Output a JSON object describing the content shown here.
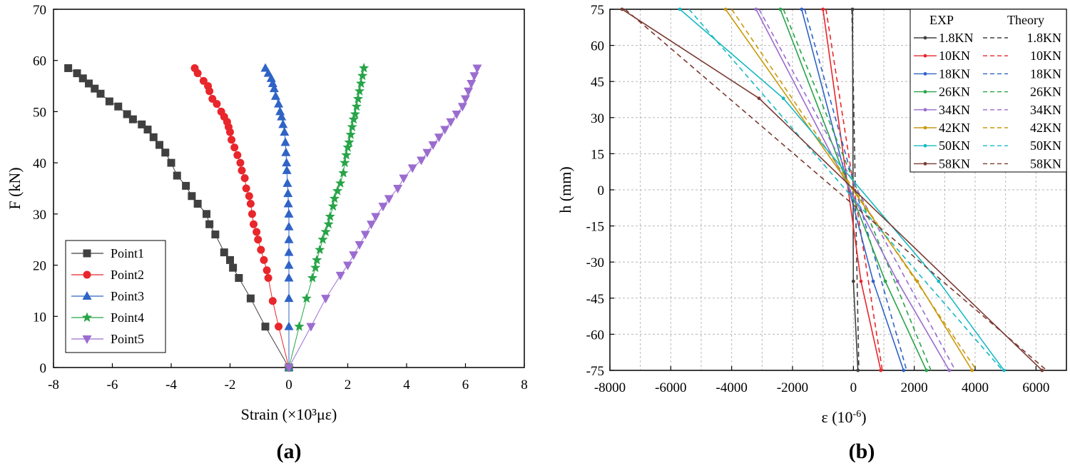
{
  "colors": {
    "black": "#404040",
    "red": "#e8262b",
    "blue": "#2f63c6",
    "green": "#27a448",
    "purple": "#9b6cd0",
    "gold": "#c99a0e",
    "cyan": "#17b9c4",
    "brown": "#7a3b32",
    "grid": "#b8b8b8"
  },
  "panels": {
    "a": "(a)",
    "b": "(b)"
  },
  "chart_data": [
    {
      "type": "scatter",
      "panel": "(a)",
      "xlabel": "Strain (×10³με)",
      "ylabel": "F (kN)",
      "xlim": [
        -8,
        8
      ],
      "ylim": [
        0,
        70
      ],
      "xticks": [
        -8,
        -6,
        -4,
        -2,
        0,
        2,
        4,
        6,
        8
      ],
      "yticks": [
        0,
        10,
        20,
        30,
        40,
        50,
        60,
        70
      ],
      "legend_position": "bottom-left",
      "series": [
        {
          "name": "Point1",
          "color": "black",
          "marker": "square",
          "points": [
            [
              0,
              0
            ],
            [
              -0.8,
              8
            ],
            [
              -1.3,
              13.5
            ],
            [
              -1.7,
              17.5
            ],
            [
              -1.9,
              19.5
            ],
            [
              -2.0,
              21
            ],
            [
              -2.2,
              22.5
            ],
            [
              -2.5,
              26
            ],
            [
              -2.7,
              28
            ],
            [
              -2.8,
              30
            ],
            [
              -3.1,
              32
            ],
            [
              -3.3,
              33.5
            ],
            [
              -3.5,
              35.5
            ],
            [
              -3.8,
              37.5
            ],
            [
              -4.0,
              40
            ],
            [
              -4.2,
              42
            ],
            [
              -4.4,
              43.5
            ],
            [
              -4.6,
              45
            ],
            [
              -4.8,
              46.5
            ],
            [
              -5.0,
              47.5
            ],
            [
              -5.3,
              48.5
            ],
            [
              -5.5,
              49.5
            ],
            [
              -5.8,
              51
            ],
            [
              -6.1,
              52
            ],
            [
              -6.4,
              53.5
            ],
            [
              -6.6,
              54.5
            ],
            [
              -6.8,
              55.5
            ],
            [
              -7.0,
              56.5
            ],
            [
              -7.2,
              57.5
            ],
            [
              -7.5,
              58.5
            ]
          ]
        },
        {
          "name": "Point2",
          "color": "red",
          "marker": "circle",
          "points": [
            [
              0,
              0
            ],
            [
              -0.35,
              8
            ],
            [
              -0.55,
              13
            ],
            [
              -0.7,
              17.5
            ],
            [
              -0.75,
              19
            ],
            [
              -0.85,
              21
            ],
            [
              -0.95,
              23
            ],
            [
              -1.05,
              25
            ],
            [
              -1.1,
              26.5
            ],
            [
              -1.2,
              28
            ],
            [
              -1.25,
              30
            ],
            [
              -1.3,
              32
            ],
            [
              -1.35,
              33.5
            ],
            [
              -1.45,
              35
            ],
            [
              -1.5,
              37
            ],
            [
              -1.6,
              38.5
            ],
            [
              -1.65,
              40
            ],
            [
              -1.75,
              41.5
            ],
            [
              -1.85,
              43
            ],
            [
              -1.95,
              44.5
            ],
            [
              -2.0,
              46
            ],
            [
              -2.05,
              47
            ],
            [
              -2.1,
              48
            ],
            [
              -2.2,
              49
            ],
            [
              -2.3,
              50
            ],
            [
              -2.45,
              51.5
            ],
            [
              -2.6,
              52.5
            ],
            [
              -2.7,
              54
            ],
            [
              -2.75,
              55
            ],
            [
              -2.9,
              56
            ],
            [
              -3.1,
              57.5
            ],
            [
              -3.2,
              58.5
            ]
          ]
        },
        {
          "name": "Point3",
          "color": "blue",
          "marker": "triangle-up",
          "points": [
            [
              0,
              0
            ],
            [
              0,
              8
            ],
            [
              0,
              13.5
            ],
            [
              0,
              17.5
            ],
            [
              0,
              20
            ],
            [
              0,
              22.5
            ],
            [
              0,
              25
            ],
            [
              0,
              27.5
            ],
            [
              0,
              30
            ],
            [
              -0.02,
              32
            ],
            [
              -0.03,
              34
            ],
            [
              -0.05,
              36
            ],
            [
              -0.07,
              38.5
            ],
            [
              -0.08,
              40
            ],
            [
              -0.1,
              42
            ],
            [
              -0.12,
              44
            ],
            [
              -0.15,
              46
            ],
            [
              -0.2,
              47.5
            ],
            [
              -0.25,
              49
            ],
            [
              -0.3,
              50
            ],
            [
              -0.35,
              51.5
            ],
            [
              -0.45,
              53
            ],
            [
              -0.5,
              54.5
            ],
            [
              -0.55,
              55.5
            ],
            [
              -0.6,
              56.5
            ],
            [
              -0.7,
              57.5
            ],
            [
              -0.8,
              58.5
            ]
          ]
        },
        {
          "name": "Point4",
          "color": "green",
          "marker": "star",
          "points": [
            [
              0,
              0
            ],
            [
              0.35,
              8
            ],
            [
              0.6,
              13.5
            ],
            [
              0.8,
              17.5
            ],
            [
              0.9,
              19.5
            ],
            [
              0.95,
              21
            ],
            [
              1.05,
              23
            ],
            [
              1.15,
              25
            ],
            [
              1.25,
              26.5
            ],
            [
              1.35,
              28
            ],
            [
              1.4,
              29.5
            ],
            [
              1.5,
              31.5
            ],
            [
              1.55,
              33
            ],
            [
              1.65,
              34.5
            ],
            [
              1.75,
              36
            ],
            [
              1.85,
              38
            ],
            [
              1.9,
              40
            ],
            [
              1.95,
              41.5
            ],
            [
              2.0,
              43
            ],
            [
              2.05,
              44
            ],
            [
              2.1,
              45.5
            ],
            [
              2.15,
              47
            ],
            [
              2.2,
              48.5
            ],
            [
              2.25,
              49.5
            ],
            [
              2.3,
              51
            ],
            [
              2.35,
              52.5
            ],
            [
              2.4,
              54
            ],
            [
              2.45,
              55.5
            ],
            [
              2.5,
              57
            ],
            [
              2.55,
              58.5
            ]
          ]
        },
        {
          "name": "Point5",
          "color": "purple",
          "marker": "triangle-down",
          "points": [
            [
              0,
              0
            ],
            [
              0.75,
              8
            ],
            [
              1.25,
              13.5
            ],
            [
              1.75,
              18
            ],
            [
              2.0,
              20
            ],
            [
              2.2,
              22
            ],
            [
              2.4,
              24
            ],
            [
              2.6,
              26
            ],
            [
              2.8,
              28
            ],
            [
              2.95,
              29.5
            ],
            [
              3.2,
              31.5
            ],
            [
              3.4,
              33
            ],
            [
              3.7,
              35
            ],
            [
              3.9,
              37
            ],
            [
              4.2,
              39
            ],
            [
              4.5,
              40.5
            ],
            [
              4.7,
              42
            ],
            [
              4.9,
              43.5
            ],
            [
              5.1,
              45
            ],
            [
              5.3,
              46.5
            ],
            [
              5.5,
              48
            ],
            [
              5.7,
              49.5
            ],
            [
              5.9,
              51
            ],
            [
              6.0,
              52.5
            ],
            [
              6.1,
              54
            ],
            [
              6.2,
              55.5
            ],
            [
              6.3,
              57
            ],
            [
              6.4,
              58.5
            ]
          ]
        }
      ]
    },
    {
      "type": "line",
      "panel": "(b)",
      "xlabel": "ε (10",
      "xlabel_sup": "-6",
      "xlabel_end": ")",
      "ylabel": "h (mm)",
      "xlim": [
        -8000,
        7000
      ],
      "ylim": [
        -75,
        75
      ],
      "xticks": [
        -8000,
        -6000,
        -4000,
        -2000,
        0,
        2000,
        4000,
        6000
      ],
      "yticks": [
        75,
        60,
        45,
        30,
        15,
        0,
        -15,
        -30,
        -45,
        -60,
        -75
      ],
      "grid": true,
      "legend_position": "top-right",
      "legend_headers": [
        "EXP",
        "Theory"
      ],
      "series": [
        {
          "name": "1.8KN",
          "color": "black",
          "exp": [
            [
              -30,
              75
            ],
            [
              0,
              -38
            ],
            [
              150,
              -75
            ]
          ],
          "theory": [
            [
              -50,
              75
            ],
            [
              180,
              -75
            ]
          ]
        },
        {
          "name": "10KN",
          "color": "red",
          "exp": [
            [
              -1000,
              75
            ],
            [
              250,
              -38
            ],
            [
              900,
              -75
            ]
          ],
          "theory": [
            [
              -900,
              75
            ],
            [
              950,
              -75
            ]
          ]
        },
        {
          "name": "18KN",
          "color": "blue",
          "exp": [
            [
              -1700,
              75
            ],
            [
              650,
              -38
            ],
            [
              1650,
              -75
            ]
          ],
          "theory": [
            [
              -1600,
              75
            ],
            [
              1750,
              -75
            ]
          ]
        },
        {
          "name": "26KN",
          "color": "green",
          "exp": [
            [
              -2400,
              75
            ],
            [
              1050,
              -38
            ],
            [
              2400,
              -75
            ]
          ],
          "theory": [
            [
              -2300,
              75
            ],
            [
              2550,
              -75
            ]
          ]
        },
        {
          "name": "34KN",
          "color": "purple",
          "exp": [
            [
              -3200,
              75
            ],
            [
              1450,
              -38
            ],
            [
              3150,
              -75
            ]
          ],
          "theory": [
            [
              -3100,
              75
            ],
            [
              3350,
              -75
            ]
          ]
        },
        {
          "name": "42KN",
          "color": "gold",
          "exp": [
            [
              -4200,
              75
            ],
            [
              2100,
              -38
            ],
            [
              3900,
              -75
            ]
          ],
          "theory": [
            [
              -4000,
              75
            ],
            [
              4050,
              -75
            ]
          ]
        },
        {
          "name": "50KN",
          "color": "cyan",
          "exp": [
            [
              -5700,
              75
            ],
            [
              -2300,
              38
            ],
            [
              2800,
              -38
            ],
            [
              4950,
              -75
            ]
          ],
          "theory": [
            [
              -5400,
              75
            ],
            [
              4900,
              -75
            ]
          ]
        },
        {
          "name": "58KN",
          "color": "brown",
          "exp": [
            [
              -7600,
              75
            ],
            [
              -3100,
              38
            ],
            [
              6200,
              -75
            ]
          ],
          "theory": [
            [
              -7500,
              75
            ],
            [
              6350,
              -75
            ]
          ]
        }
      ]
    }
  ]
}
